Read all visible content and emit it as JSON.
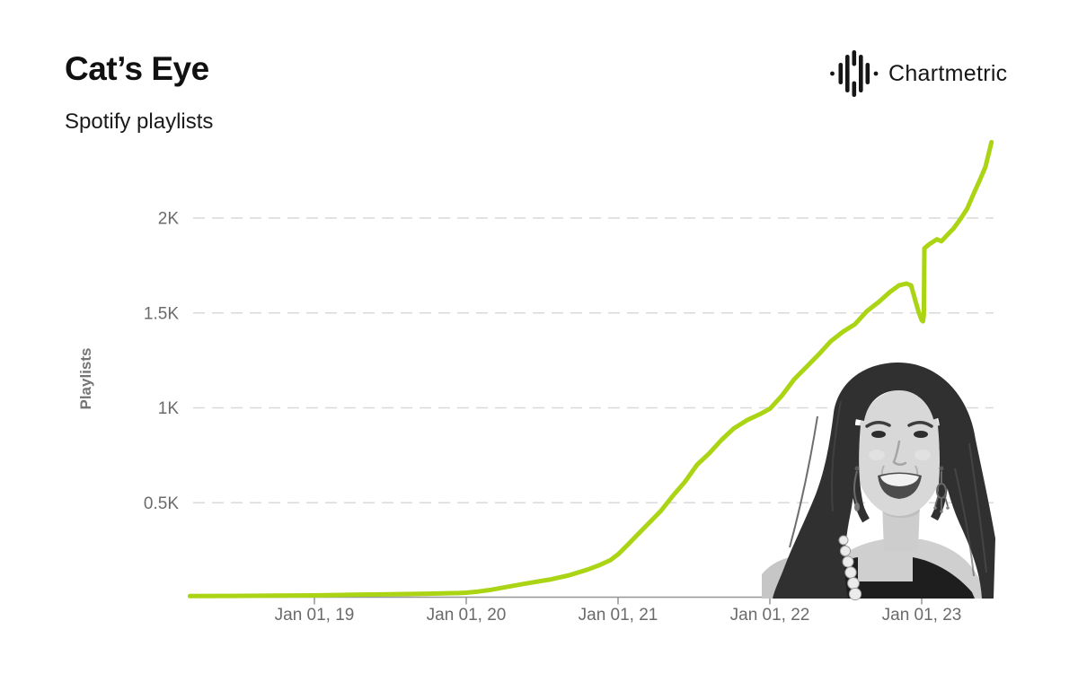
{
  "header": {
    "title": "Cat’s Eye",
    "subtitle": "Spotify playlists"
  },
  "logo": {
    "text": "Chartmetric",
    "icon": "chartmetric-waveform-icon",
    "color": "#161616"
  },
  "chart_data": {
    "type": "line",
    "title": "Cat’s Eye",
    "subtitle": "Spotify playlists",
    "ylabel": "Playlists",
    "series_name": "Spotify playlists",
    "line_color": "#aad414",
    "grid": "dashed-horizontal",
    "grid_color": "#d9d9d9",
    "axis_color": "#969696",
    "tick_label_color": "#6b6b6b",
    "x_axis": {
      "ticks": [
        {
          "label": "Jan 01, 19",
          "t": 2019.0
        },
        {
          "label": "Jan 01, 20",
          "t": 2020.0
        },
        {
          "label": "Jan 01, 21",
          "t": 2021.0
        },
        {
          "label": "Jan 01, 22",
          "t": 2022.0
        },
        {
          "label": "Jan 01, 23",
          "t": 2023.0
        }
      ],
      "range_years": [
        2018.18,
        2023.47
      ]
    },
    "y_axis": {
      "ticks": [
        {
          "label": "0.5K",
          "value": 500
        },
        {
          "label": "1K",
          "value": 1000
        },
        {
          "label": "1.5K",
          "value": 1500
        },
        {
          "label": "2K",
          "value": 2000
        }
      ],
      "range": [
        0,
        2500
      ]
    },
    "points": [
      [
        2018.18,
        8
      ],
      [
        2018.45,
        9
      ],
      [
        2018.75,
        11
      ],
      [
        2019.0,
        12
      ],
      [
        2019.25,
        15
      ],
      [
        2019.5,
        18
      ],
      [
        2019.75,
        21
      ],
      [
        2019.95,
        24
      ],
      [
        2020.0,
        26
      ],
      [
        2020.08,
        32
      ],
      [
        2020.17,
        42
      ],
      [
        2020.28,
        58
      ],
      [
        2020.4,
        75
      ],
      [
        2020.55,
        95
      ],
      [
        2020.68,
        118
      ],
      [
        2020.8,
        148
      ],
      [
        2020.88,
        172
      ],
      [
        2020.95,
        198
      ],
      [
        2021.0,
        228
      ],
      [
        2021.06,
        275
      ],
      [
        2021.12,
        325
      ],
      [
        2021.2,
        390
      ],
      [
        2021.28,
        455
      ],
      [
        2021.36,
        535
      ],
      [
        2021.44,
        610
      ],
      [
        2021.52,
        700
      ],
      [
        2021.6,
        760
      ],
      [
        2021.68,
        830
      ],
      [
        2021.76,
        890
      ],
      [
        2021.85,
        935
      ],
      [
        2021.93,
        965
      ],
      [
        2022.0,
        995
      ],
      [
        2022.08,
        1065
      ],
      [
        2022.16,
        1150
      ],
      [
        2022.24,
        1215
      ],
      [
        2022.32,
        1280
      ],
      [
        2022.4,
        1350
      ],
      [
        2022.48,
        1400
      ],
      [
        2022.56,
        1440
      ],
      [
        2022.64,
        1510
      ],
      [
        2022.72,
        1560
      ],
      [
        2022.79,
        1610
      ],
      [
        2022.85,
        1645
      ],
      [
        2022.9,
        1655
      ],
      [
        2022.93,
        1645
      ],
      [
        2022.96,
        1560
      ],
      [
        2022.98,
        1505
      ],
      [
        2023.0,
        1462
      ],
      [
        2023.008,
        1456
      ],
      [
        2023.014,
        1490
      ],
      [
        2023.018,
        1840
      ],
      [
        2023.05,
        1862
      ],
      [
        2023.1,
        1888
      ],
      [
        2023.13,
        1878
      ],
      [
        2023.17,
        1912
      ],
      [
        2023.21,
        1945
      ],
      [
        2023.26,
        2000
      ],
      [
        2023.3,
        2050
      ],
      [
        2023.34,
        2125
      ],
      [
        2023.38,
        2195
      ],
      [
        2023.42,
        2270
      ],
      [
        2023.46,
        2400
      ]
    ]
  }
}
